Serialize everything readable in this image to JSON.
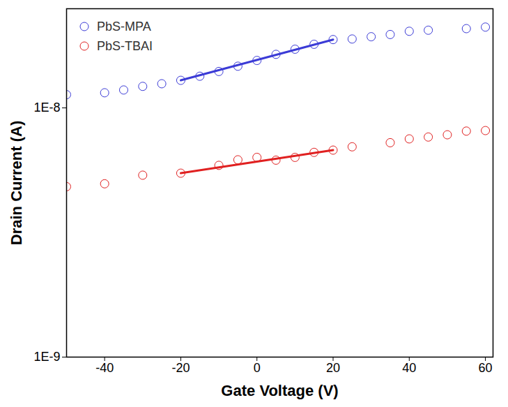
{
  "chart_data": {
    "type": "scatter",
    "x_label": "Gate Voltage (V)",
    "y_label": "Drain Current (A)",
    "log": "y",
    "legend": "top-left",
    "marker": "open-circle",
    "xlim": [
      -50,
      62
    ],
    "xticks": [
      -40,
      -20,
      0,
      20,
      40,
      60
    ],
    "ylim": [
      1e-09,
      2.5e-08
    ],
    "yticks": [
      {
        "value": 1e-09,
        "label": "1E-9"
      },
      {
        "value": 1e-08,
        "label": "1E-8"
      }
    ],
    "series": [
      {
        "name": "PbS-MPA",
        "color": "#3b3bd6",
        "x": [
          -50,
          -40,
          -35,
          -30,
          -25,
          -20,
          -15,
          -10,
          -5,
          0,
          5,
          10,
          15,
          20,
          25,
          30,
          35,
          40,
          45,
          55,
          60
        ],
        "values": [
          1.13e-08,
          1.15e-08,
          1.18e-08,
          1.22e-08,
          1.25e-08,
          1.29e-08,
          1.34e-08,
          1.4e-08,
          1.47e-08,
          1.55e-08,
          1.64e-08,
          1.72e-08,
          1.8e-08,
          1.88e-08,
          1.89e-08,
          1.93e-08,
          1.97e-08,
          2.03e-08,
          2.05e-08,
          2.08e-08,
          2.11e-08
        ],
        "fit": {
          "x": [
            -20,
            20
          ],
          "values": [
            1.29e-08,
            1.88e-08
          ]
        }
      },
      {
        "name": "PbS-TBAI",
        "color": "#e02020",
        "x": [
          -50,
          -40,
          -30,
          -20,
          -10,
          -5,
          0,
          5,
          10,
          15,
          20,
          25,
          35,
          40,
          45,
          50,
          55,
          60
        ],
        "values": [
          4.83e-09,
          4.96e-09,
          5.37e-09,
          5.47e-09,
          5.88e-09,
          6.19e-09,
          6.33e-09,
          6.17e-09,
          6.33e-09,
          6.63e-09,
          6.77e-09,
          6.98e-09,
          7.25e-09,
          7.51e-09,
          7.64e-09,
          7.8e-09,
          8.07e-09,
          8.11e-09
        ],
        "fit": {
          "x": [
            -20,
            20
          ],
          "values": [
            5.47e-09,
            6.77e-09
          ]
        }
      }
    ]
  }
}
